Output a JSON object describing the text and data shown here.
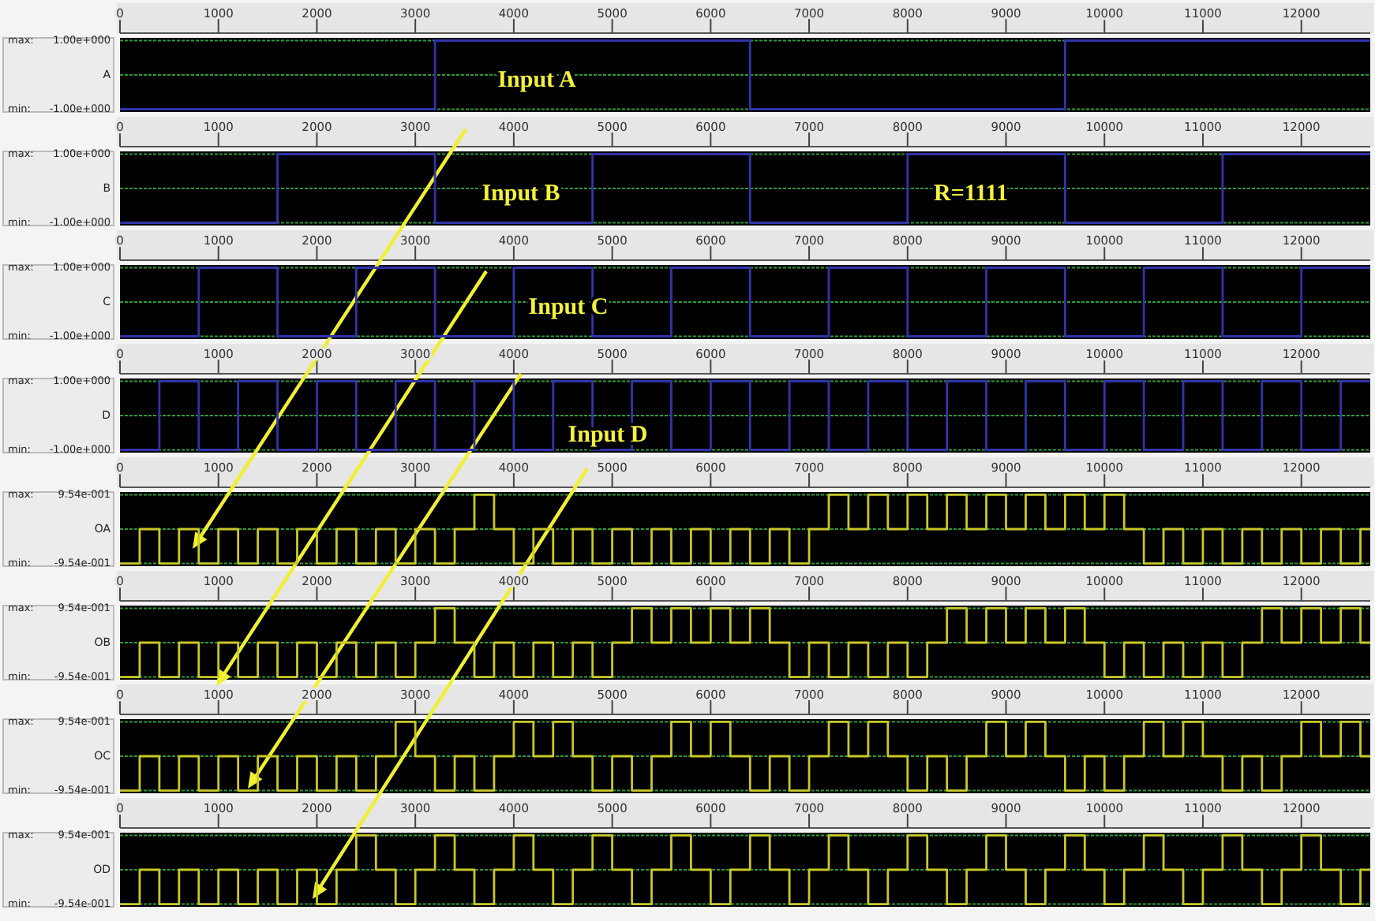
{
  "chart_data": [
    {
      "type": "step",
      "ylabel": "A",
      "color": "#3333aa",
      "xlim": [
        0,
        12700
      ],
      "xticks": [
        0,
        1000,
        2000,
        3000,
        4000,
        5000,
        6000,
        7000,
        8000,
        9000,
        10000,
        11000,
        12000
      ],
      "ylim": [
        -1.08,
        1.08
      ],
      "yticks": [
        {
          "value": 1,
          "label": "1.00e+000"
        },
        {
          "value": -1,
          "label": "-1.00e+000"
        }
      ],
      "grid": "y",
      "ref_lines": [
        {
          "axis": "y",
          "value": 0,
          "color": "#2f9a3a",
          "line_style": "dotted"
        }
      ],
      "annotations": [
        "max:",
        "min:",
        "Input A"
      ],
      "x": [
        0,
        3200,
        6400,
        9600,
        12700
      ],
      "values": [
        -1,
        1,
        -1,
        1,
        1
      ]
    },
    {
      "type": "step",
      "ylabel": "B",
      "color": "#3333aa",
      "xlim": [
        0,
        12700
      ],
      "xticks": [
        0,
        1000,
        2000,
        3000,
        4000,
        5000,
        6000,
        7000,
        8000,
        9000,
        10000,
        11000,
        12000
      ],
      "ylim": [
        -1.08,
        1.08
      ],
      "yticks": [
        {
          "value": 1,
          "label": "1.00e+000"
        },
        {
          "value": -1,
          "label": "-1.00e+000"
        }
      ],
      "grid": "y",
      "ref_lines": [
        {
          "axis": "y",
          "value": 0,
          "color": "#2f9a3a",
          "line_style": "dotted"
        }
      ],
      "annotations": [
        "max:",
        "min:",
        "Input B",
        "R=1111"
      ],
      "x": [
        0,
        1600,
        3200,
        4800,
        6400,
        8000,
        9600,
        11200,
        12700
      ],
      "values": [
        -1,
        1,
        -1,
        1,
        -1,
        1,
        -1,
        1,
        1
      ]
    },
    {
      "type": "step",
      "ylabel": "C",
      "color": "#3333aa",
      "xlim": [
        0,
        12700
      ],
      "xticks": [
        0,
        1000,
        2000,
        3000,
        4000,
        5000,
        6000,
        7000,
        8000,
        9000,
        10000,
        11000,
        12000
      ],
      "ylim": [
        -1.08,
        1.08
      ],
      "yticks": [
        {
          "value": 1,
          "label": "1.00e+000"
        },
        {
          "value": -1,
          "label": "-1.00e+000"
        }
      ],
      "grid": "y",
      "ref_lines": [
        {
          "axis": "y",
          "value": 0,
          "color": "#2f9a3a",
          "line_style": "dotted"
        }
      ],
      "annotations": [
        "max:",
        "min:",
        "Input C"
      ],
      "x": [
        0,
        800,
        1600,
        2400,
        3200,
        4000,
        4800,
        5600,
        6400,
        7200,
        8000,
        8800,
        9600,
        10400,
        11200,
        12000,
        12700
      ],
      "values": [
        -1,
        1,
        -1,
        1,
        -1,
        1,
        -1,
        1,
        -1,
        1,
        -1,
        1,
        -1,
        1,
        -1,
        1,
        1
      ]
    },
    {
      "type": "step",
      "ylabel": "D",
      "color": "#3333aa",
      "xlim": [
        0,
        12700
      ],
      "xticks": [
        0,
        1000,
        2000,
        3000,
        4000,
        5000,
        6000,
        7000,
        8000,
        9000,
        10000,
        11000,
        12000
      ],
      "ylim": [
        -1.08,
        1.08
      ],
      "yticks": [
        {
          "value": 1,
          "label": "1.00e+000"
        },
        {
          "value": -1,
          "label": "-1.00e+000"
        }
      ],
      "grid": "y",
      "ref_lines": [
        {
          "axis": "y",
          "value": 0,
          "color": "#2f9a3a",
          "line_style": "dotted"
        }
      ],
      "annotations": [
        "max:",
        "min:",
        "Input D"
      ],
      "x": [
        0,
        400,
        800,
        1200,
        1600,
        2000,
        2400,
        2800,
        3200,
        3600,
        4000,
        4400,
        4800,
        5200,
        5600,
        6000,
        6400,
        6800,
        7200,
        7600,
        8000,
        8400,
        8800,
        9200,
        9600,
        10000,
        10400,
        10800,
        11200,
        11600,
        12000,
        12400,
        12700
      ],
      "values": [
        -1,
        1,
        -1,
        1,
        -1,
        1,
        -1,
        1,
        -1,
        1,
        -1,
        1,
        -1,
        1,
        -1,
        1,
        -1,
        1,
        -1,
        1,
        -1,
        1,
        -1,
        1,
        -1,
        1,
        -1,
        1,
        -1,
        1,
        -1,
        1,
        1
      ]
    },
    {
      "type": "step",
      "ylabel": "OA",
      "color": "#c8c828",
      "xlim": [
        0,
        12700
      ],
      "xticks": [
        0,
        1000,
        2000,
        3000,
        4000,
        5000,
        6000,
        7000,
        8000,
        9000,
        10000,
        11000,
        12000
      ],
      "ylim": [
        -1.03,
        1.03
      ],
      "yticks": [
        {
          "value": 0.954,
          "label": "9.54e-001"
        },
        {
          "value": -0.954,
          "label": "-9.54e-001"
        }
      ],
      "grid": "y",
      "ref_lines": [
        {
          "axis": "y",
          "value": 0,
          "color": "#2f9a3a",
          "line_style": "dotted"
        }
      ],
      "annotations": [
        "max:",
        "min:"
      ],
      "x": [
        0,
        200,
        400,
        600,
        800,
        1000,
        1200,
        1400,
        1600,
        1800,
        2000,
        2200,
        2400,
        2600,
        2800,
        3000,
        3200,
        3400,
        3600,
        3800,
        4000,
        4200,
        4400,
        4600,
        4800,
        5000,
        5200,
        5400,
        5600,
        5800,
        6000,
        6200,
        6400,
        6600,
        6800,
        7000,
        7200,
        7400,
        7600,
        7800,
        8000,
        8200,
        8400,
        8600,
        8800,
        9000,
        9200,
        9400,
        9600,
        9800,
        10000,
        10200,
        10400,
        10600,
        10800,
        11000,
        11200,
        11400,
        11600,
        11800,
        12000,
        12200,
        12400,
        12600,
        12700
      ],
      "values": [
        -0.954,
        0,
        -0.954,
        0,
        -0.954,
        0,
        -0.954,
        0,
        -0.954,
        0,
        -0.954,
        0,
        -0.954,
        0,
        -0.954,
        0,
        -0.954,
        0,
        0.954,
        0,
        -0.954,
        0,
        -0.954,
        0,
        -0.954,
        0,
        -0.954,
        0,
        -0.954,
        0,
        -0.954,
        0,
        -0.954,
        0,
        -0.954,
        0,
        0.954,
        0,
        0.954,
        0,
        0.954,
        0,
        0.954,
        0,
        0.954,
        0,
        0.954,
        0,
        0.954,
        0,
        0.954,
        0,
        -0.954,
        0,
        -0.954,
        0,
        -0.954,
        0,
        -0.954,
        0,
        -0.954,
        0,
        -0.954,
        0,
        0
      ]
    },
    {
      "type": "step",
      "ylabel": "OB",
      "color": "#c8c828",
      "xlim": [
        0,
        12700
      ],
      "xticks": [
        0,
        1000,
        2000,
        3000,
        4000,
        5000,
        6000,
        7000,
        8000,
        9000,
        10000,
        11000,
        12000
      ],
      "ylim": [
        -1.03,
        1.03
      ],
      "yticks": [
        {
          "value": 0.954,
          "label": "9.54e-001"
        },
        {
          "value": -0.954,
          "label": "-9.54e-001"
        }
      ],
      "grid": "y",
      "ref_lines": [
        {
          "axis": "y",
          "value": 0,
          "color": "#2f9a3a",
          "line_style": "dotted"
        }
      ],
      "annotations": [
        "max:",
        "min:"
      ],
      "x": [
        0,
        200,
        400,
        600,
        800,
        1000,
        1200,
        1400,
        1600,
        1800,
        2000,
        2200,
        2400,
        2600,
        2800,
        3000,
        3200,
        3400,
        3600,
        3800,
        4000,
        4200,
        4400,
        4600,
        4800,
        5000,
        5200,
        5400,
        5600,
        5800,
        6000,
        6200,
        6400,
        6600,
        6800,
        7000,
        7200,
        7400,
        7600,
        7800,
        8000,
        8200,
        8400,
        8600,
        8800,
        9000,
        9200,
        9400,
        9600,
        9800,
        10000,
        10200,
        10400,
        10600,
        10800,
        11000,
        11200,
        11400,
        11600,
        11800,
        12000,
        12200,
        12400,
        12600,
        12700
      ],
      "values": [
        -0.954,
        0,
        -0.954,
        0,
        -0.954,
        0,
        -0.954,
        0,
        -0.954,
        0,
        -0.954,
        0,
        -0.954,
        0,
        -0.954,
        0,
        0.954,
        0,
        -0.954,
        0,
        -0.954,
        0,
        -0.954,
        0,
        -0.954,
        0,
        0.954,
        0,
        0.954,
        0,
        0.954,
        0,
        0.954,
        0,
        -0.954,
        0,
        -0.954,
        0,
        -0.954,
        0,
        -0.954,
        0,
        0.954,
        0,
        0.954,
        0,
        0.954,
        0,
        0.954,
        0,
        -0.954,
        0,
        -0.954,
        0,
        -0.954,
        0,
        -0.954,
        0,
        0.954,
        0,
        0.954,
        0,
        0.954,
        0,
        0
      ]
    },
    {
      "type": "step",
      "ylabel": "OC",
      "color": "#c8c828",
      "xlim": [
        0,
        12700
      ],
      "xticks": [
        0,
        1000,
        2000,
        3000,
        4000,
        5000,
        6000,
        7000,
        8000,
        9000,
        10000,
        11000,
        12000
      ],
      "ylim": [
        -1.03,
        1.03
      ],
      "yticks": [
        {
          "value": 0.954,
          "label": "9.54e-001"
        },
        {
          "value": -0.954,
          "label": "-9.54e-001"
        }
      ],
      "grid": "y",
      "ref_lines": [
        {
          "axis": "y",
          "value": 0,
          "color": "#2f9a3a",
          "line_style": "dotted"
        }
      ],
      "annotations": [
        "max:",
        "min:"
      ],
      "x": [
        0,
        200,
        400,
        600,
        800,
        1000,
        1200,
        1400,
        1600,
        1800,
        2000,
        2200,
        2400,
        2600,
        2800,
        3000,
        3200,
        3400,
        3600,
        3800,
        4000,
        4200,
        4400,
        4600,
        4800,
        5000,
        5200,
        5400,
        5600,
        5800,
        6000,
        6200,
        6400,
        6600,
        6800,
        7000,
        7200,
        7400,
        7600,
        7800,
        8000,
        8200,
        8400,
        8600,
        8800,
        9000,
        9200,
        9400,
        9600,
        9800,
        10000,
        10200,
        10400,
        10600,
        10800,
        11000,
        11200,
        11400,
        11600,
        11800,
        12000,
        12200,
        12400,
        12600,
        12700
      ],
      "values": [
        -0.954,
        0,
        -0.954,
        0,
        -0.954,
        0,
        -0.954,
        0,
        -0.954,
        0,
        -0.954,
        0,
        -0.954,
        0,
        0.954,
        0,
        -0.954,
        0,
        -0.954,
        0,
        0.954,
        0,
        0.954,
        0,
        -0.954,
        0,
        -0.954,
        0,
        0.954,
        0,
        0.954,
        0,
        -0.954,
        0,
        -0.954,
        0,
        0.954,
        0,
        0.954,
        0,
        -0.954,
        0,
        -0.954,
        0,
        0.954,
        0,
        0.954,
        0,
        -0.954,
        0,
        -0.954,
        0,
        0.954,
        0,
        0.954,
        0,
        -0.954,
        0,
        -0.954,
        0,
        0.954,
        0,
        0.954,
        0,
        0
      ]
    },
    {
      "type": "step",
      "ylabel": "OD",
      "color": "#c8c828",
      "xlim": [
        0,
        12700
      ],
      "xticks": [
        0,
        1000,
        2000,
        3000,
        4000,
        5000,
        6000,
        7000,
        8000,
        9000,
        10000,
        11000,
        12000
      ],
      "ylim": [
        -1.03,
        1.03
      ],
      "yticks": [
        {
          "value": 0.954,
          "label": "9.54e-001"
        },
        {
          "value": -0.954,
          "label": "-9.54e-001"
        }
      ],
      "grid": "y",
      "ref_lines": [
        {
          "axis": "y",
          "value": 0,
          "color": "#2f9a3a",
          "line_style": "dotted"
        }
      ],
      "annotations": [
        "max:",
        "min:"
      ],
      "x": [
        0,
        200,
        400,
        600,
        800,
        1000,
        1200,
        1400,
        1600,
        1800,
        2000,
        2200,
        2400,
        2600,
        2800,
        3000,
        3200,
        3400,
        3600,
        3800,
        4000,
        4200,
        4400,
        4600,
        4800,
        5000,
        5200,
        5400,
        5600,
        5800,
        6000,
        6200,
        6400,
        6600,
        6800,
        7000,
        7200,
        7400,
        7600,
        7800,
        8000,
        8200,
        8400,
        8600,
        8800,
        9000,
        9200,
        9400,
        9600,
        9800,
        10000,
        10200,
        10400,
        10600,
        10800,
        11000,
        11200,
        11400,
        11600,
        11800,
        12000,
        12200,
        12400,
        12600,
        12700
      ],
      "values": [
        -0.954,
        0,
        -0.954,
        0,
        -0.954,
        0,
        -0.954,
        0,
        -0.954,
        0,
        -0.954,
        0,
        0.954,
        0,
        -0.954,
        0,
        0.954,
        0,
        -0.954,
        0,
        0.954,
        0,
        -0.954,
        0,
        0.954,
        0,
        -0.954,
        0,
        0.954,
        0,
        -0.954,
        0,
        0.954,
        0,
        -0.954,
        0,
        0.954,
        0,
        -0.954,
        0,
        0.954,
        0,
        -0.954,
        0,
        0.954,
        0,
        -0.954,
        0,
        0.954,
        0,
        -0.954,
        0,
        0.954,
        0,
        -0.954,
        0,
        0.954,
        0,
        -0.954,
        0,
        0.954,
        0,
        -0.954,
        0,
        0
      ]
    }
  ]
}
